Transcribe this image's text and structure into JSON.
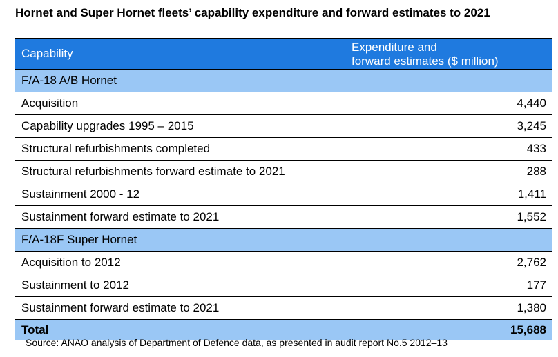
{
  "title": "Hornet and Super Hornet fleets’ capability expenditure and forward estimates to 2021",
  "header": {
    "capability": "Capability",
    "expenditure_line1": "Expenditure and",
    "expenditure_line2": "forward estimates ($ million)"
  },
  "sections": [
    {
      "name": "F/A-18 A/B Hornet",
      "rows": [
        {
          "label": "Acquisition",
          "value": "4,440"
        },
        {
          "label": "Capability upgrades 1995 – 2015",
          "value": "3,245"
        },
        {
          "label": "Structural refurbishments completed",
          "value": "433"
        },
        {
          "label": "Structural refurbishments forward estimate to 2021",
          "value": "288"
        },
        {
          "label": "Sustainment 2000 - 12",
          "value": "1,411"
        },
        {
          "label": "Sustainment forward estimate to 2021",
          "value": "1,552"
        }
      ]
    },
    {
      "name": "F/A-18F Super Hornet",
      "rows": [
        {
          "label": "Acquisition to 2012",
          "value": "2,762"
        },
        {
          "label": "Sustainment to 2012",
          "value": "177"
        },
        {
          "label": "Sustainment forward estimate to 2021",
          "value": "1,380"
        }
      ]
    }
  ],
  "total": {
    "label": "Total",
    "value": "15,688"
  },
  "source": "Source: ANAO analysis of Department of Defence data, as presented in audit report No.5 2012–13",
  "colors": {
    "header_bg": "#1f7adf",
    "section_bg": "#9ac7f5",
    "total_bg": "#9ac7f5"
  }
}
